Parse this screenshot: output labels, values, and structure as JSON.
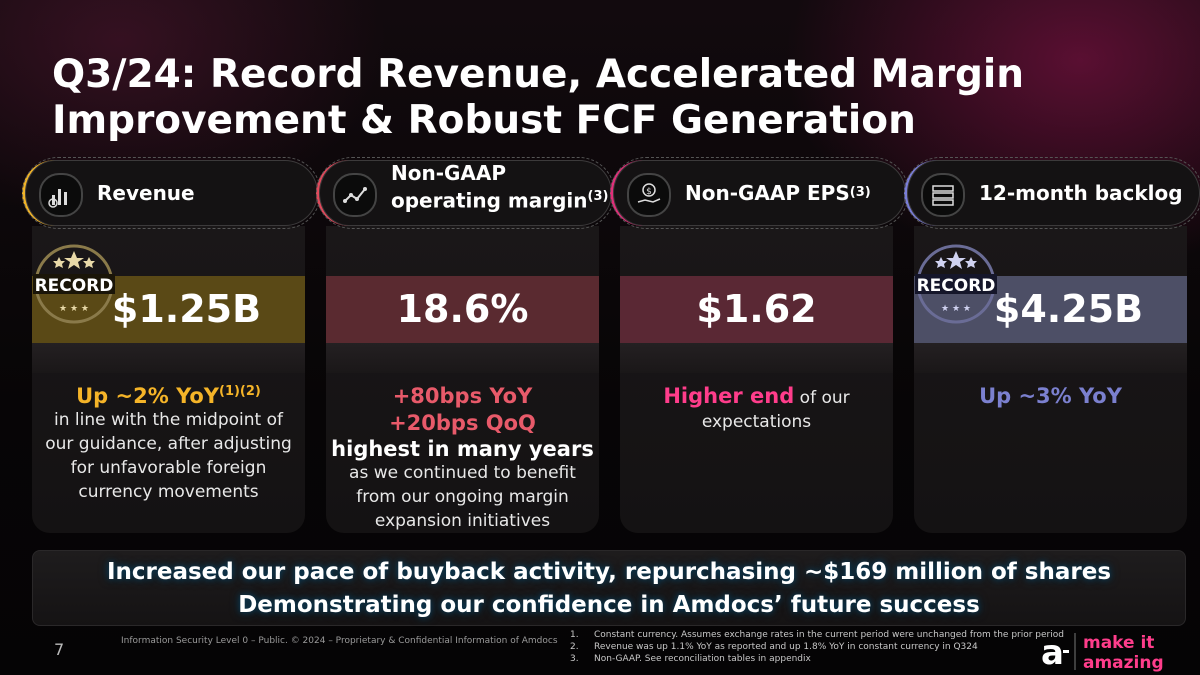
{
  "title": "Q3/24: Record Revenue, Accelerated Margin Improvement & Robust FCF Generation",
  "cards": [
    {
      "label": "Revenue",
      "icon": "revenue-chart-icon",
      "accent": "#f0b429",
      "record": "RECORD",
      "value": "$1.25B",
      "band": "#5a4916",
      "highlight": "Up ~2% YoY",
      "highlight_sup": "(1)(2)",
      "highlight_color": "#f5b428",
      "description": "in line with the midpoint of our guidance, after adjusting for unfavorable foreign currency movements"
    },
    {
      "label": "Non-GAAP operating margin",
      "label_line1": "Non-GAAP",
      "label_line2": "operating margin",
      "label_sup": "(3)",
      "icon": "trend-line-icon",
      "accent": "#e04a5c",
      "value": "18.6%",
      "band": "#5a2a30",
      "highlight": "+80bps YoY",
      "highlight2": "+20bps QoQ",
      "highlight_color": "#e85a6a",
      "highlight3": "highest in many years",
      "description": "as we continued to benefit from our ongoing margin expansion initiatives"
    },
    {
      "label": "Non-GAAP EPS",
      "label_sup": "(3)",
      "icon": "money-hand-icon",
      "accent": "#e0307a",
      "value": "$1.62",
      "band": "#5a2834",
      "highlight": "Higher end",
      "highlight_color": "#ff3d8b",
      "highlight_tail": " of our",
      "description": "expectations"
    },
    {
      "label": "12-month backlog",
      "icon": "backlog-stack-icon",
      "accent": "#7a7ed8",
      "record": "RECORD",
      "value": "$4.25B",
      "band": "#4d4f66",
      "highlight": "Up ~3% YoY",
      "highlight_color": "#7b80cf"
    }
  ],
  "banner": {
    "line1": "Increased our pace of buyback activity, repurchasing ~$169 million of shares",
    "line2": "Demonstrating our confidence in Amdocs’ future success"
  },
  "footer": {
    "page": "7",
    "classification": "Information Security Level 0 – Public. © 2024 – Proprietary & Confidential Information of Amdocs"
  },
  "notes": [
    {
      "num": "1.",
      "text": "Constant currency. Assumes exchange rates in the current period were unchanged from the prior period"
    },
    {
      "num": "2.",
      "text": "Revenue was up 1.1% YoY as reported and up 1.8% YoY in constant currency in Q324"
    },
    {
      "num": "3.",
      "text": "Non-GAAP. See reconciliation tables in appendix"
    }
  ],
  "logo": {
    "line1": "make it",
    "line2": "amazing"
  }
}
